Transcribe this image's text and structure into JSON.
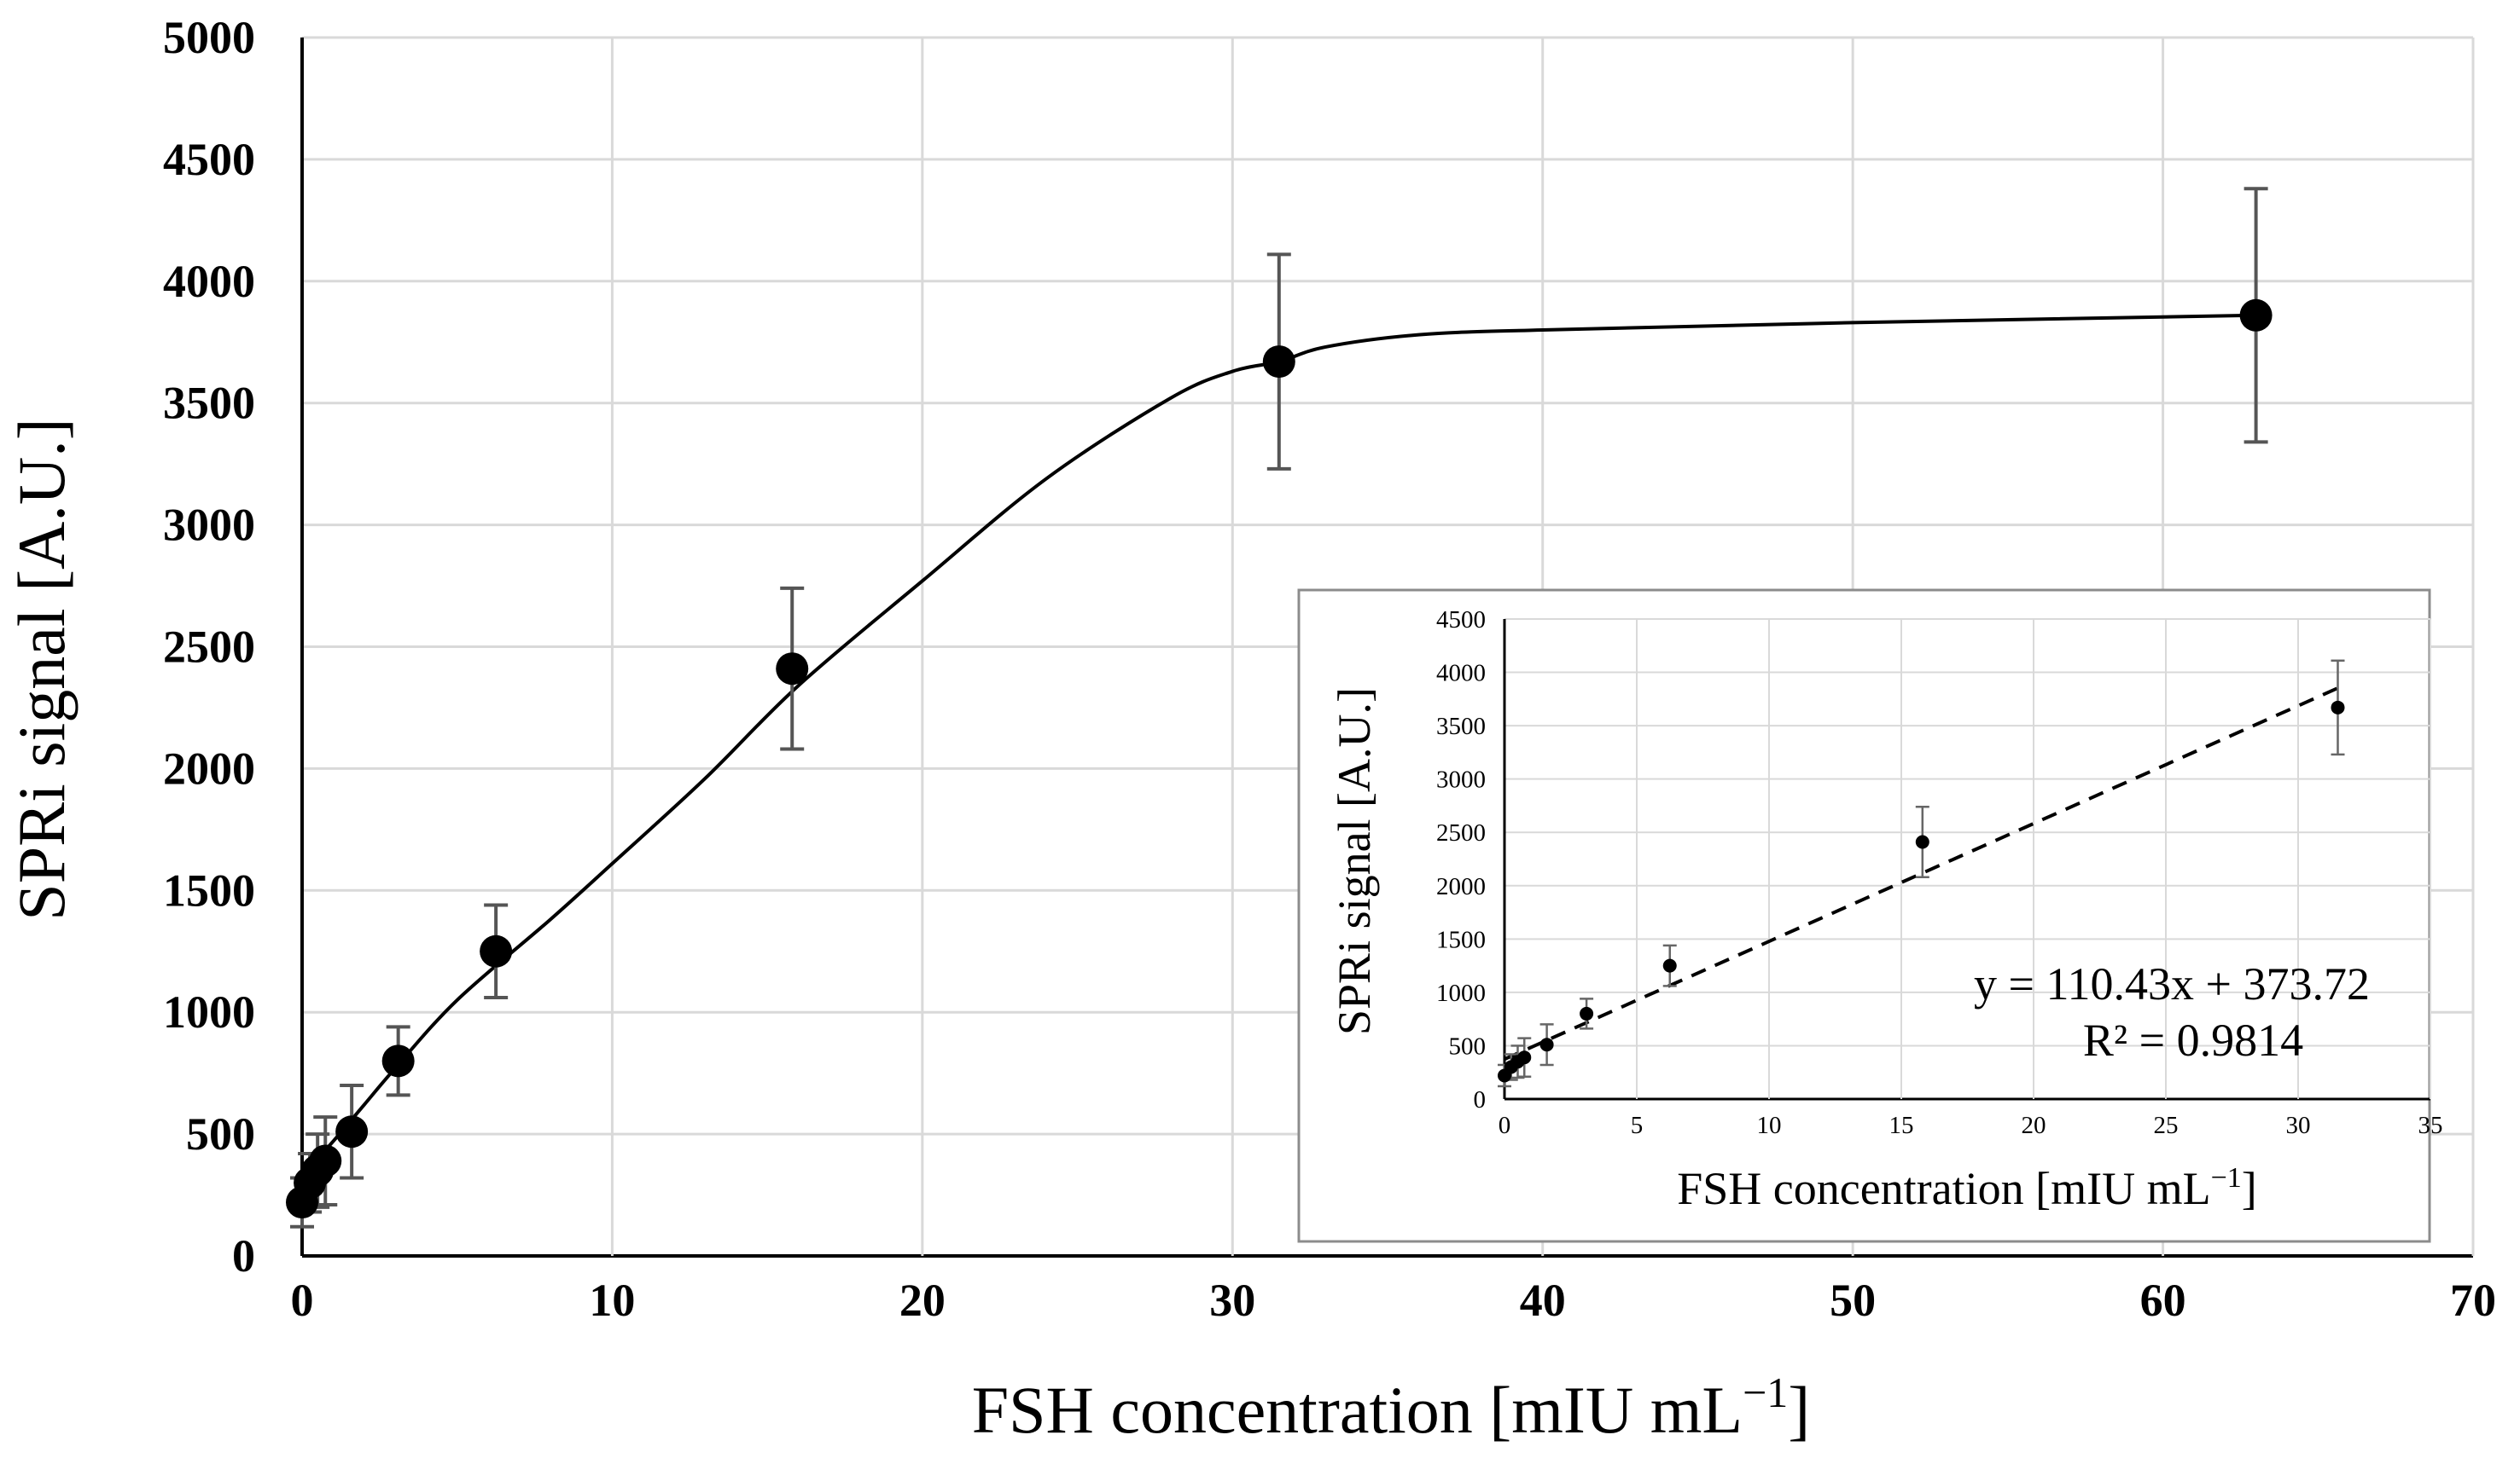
{
  "chart_data": [
    {
      "type": "scatter",
      "title": "",
      "xlabel": "FSH concentration [mIU mL",
      "xlabel_sup": "−1",
      "xlabel_end": "]",
      "ylabel": "SPRi signal [A.U.]",
      "xlim": [
        0,
        70
      ],
      "ylim": [
        0,
        5000
      ],
      "x_ticks": [
        0,
        10,
        20,
        30,
        40,
        50,
        60,
        70
      ],
      "y_ticks": [
        0,
        500,
        1000,
        1500,
        2000,
        2500,
        3000,
        3500,
        4000,
        4500,
        5000
      ],
      "grid": true,
      "series": [
        {
          "name": "SPRi signal",
          "x": [
            0.0,
            0.25,
            0.5,
            0.75,
            1.6,
            3.1,
            6.25,
            15.8,
            31.5,
            63.0
          ],
          "y": [
            220,
            300,
            350,
            390,
            510,
            800,
            1250,
            2410,
            3670,
            3860
          ],
          "error": [
            100,
            120,
            150,
            180,
            190,
            140,
            190,
            330,
            440,
            520
          ]
        }
      ],
      "fit_curve": {
        "type": "sigmoidal fit",
        "x": [
          0,
          1,
          2,
          3,
          5,
          8,
          10,
          13,
          16,
          20,
          24,
          28,
          30,
          31.5,
          33,
          36,
          40,
          50,
          63
        ],
        "y": [
          330,
          470,
          620,
          770,
          1050,
          1380,
          1610,
          1960,
          2340,
          2770,
          3190,
          3520,
          3630,
          3670,
          3730,
          3780,
          3800,
          3830,
          3860
        ]
      }
    },
    {
      "type": "scatter",
      "title": "",
      "xlabel": "FSH concentration [mIU mL",
      "xlabel_sup": "−1",
      "xlabel_end": "]",
      "ylabel": "SPRi signal [A.U.]",
      "xlim": [
        0,
        35
      ],
      "ylim": [
        0,
        4500
      ],
      "x_ticks": [
        0,
        5,
        10,
        15,
        20,
        25,
        30,
        35
      ],
      "y_ticks": [
        0,
        500,
        1000,
        1500,
        2000,
        2500,
        3000,
        3500,
        4000,
        4500
      ],
      "grid": true,
      "series": [
        {
          "name": "SPRi signal",
          "x": [
            0.0,
            0.25,
            0.5,
            0.75,
            1.6,
            3.1,
            6.25,
            15.8,
            31.5
          ],
          "y": [
            220,
            300,
            350,
            390,
            510,
            800,
            1250,
            2410,
            3670
          ],
          "error": [
            100,
            120,
            150,
            180,
            190,
            140,
            190,
            330,
            440
          ]
        }
      ],
      "trendline": {
        "type": "linear",
        "slope": 110.43,
        "intercept": 373.72,
        "x_range": [
          0,
          31.5
        ],
        "equation": "y = 110.43x + 373.72",
        "r_squared": "R² = 0.9814"
      }
    }
  ]
}
